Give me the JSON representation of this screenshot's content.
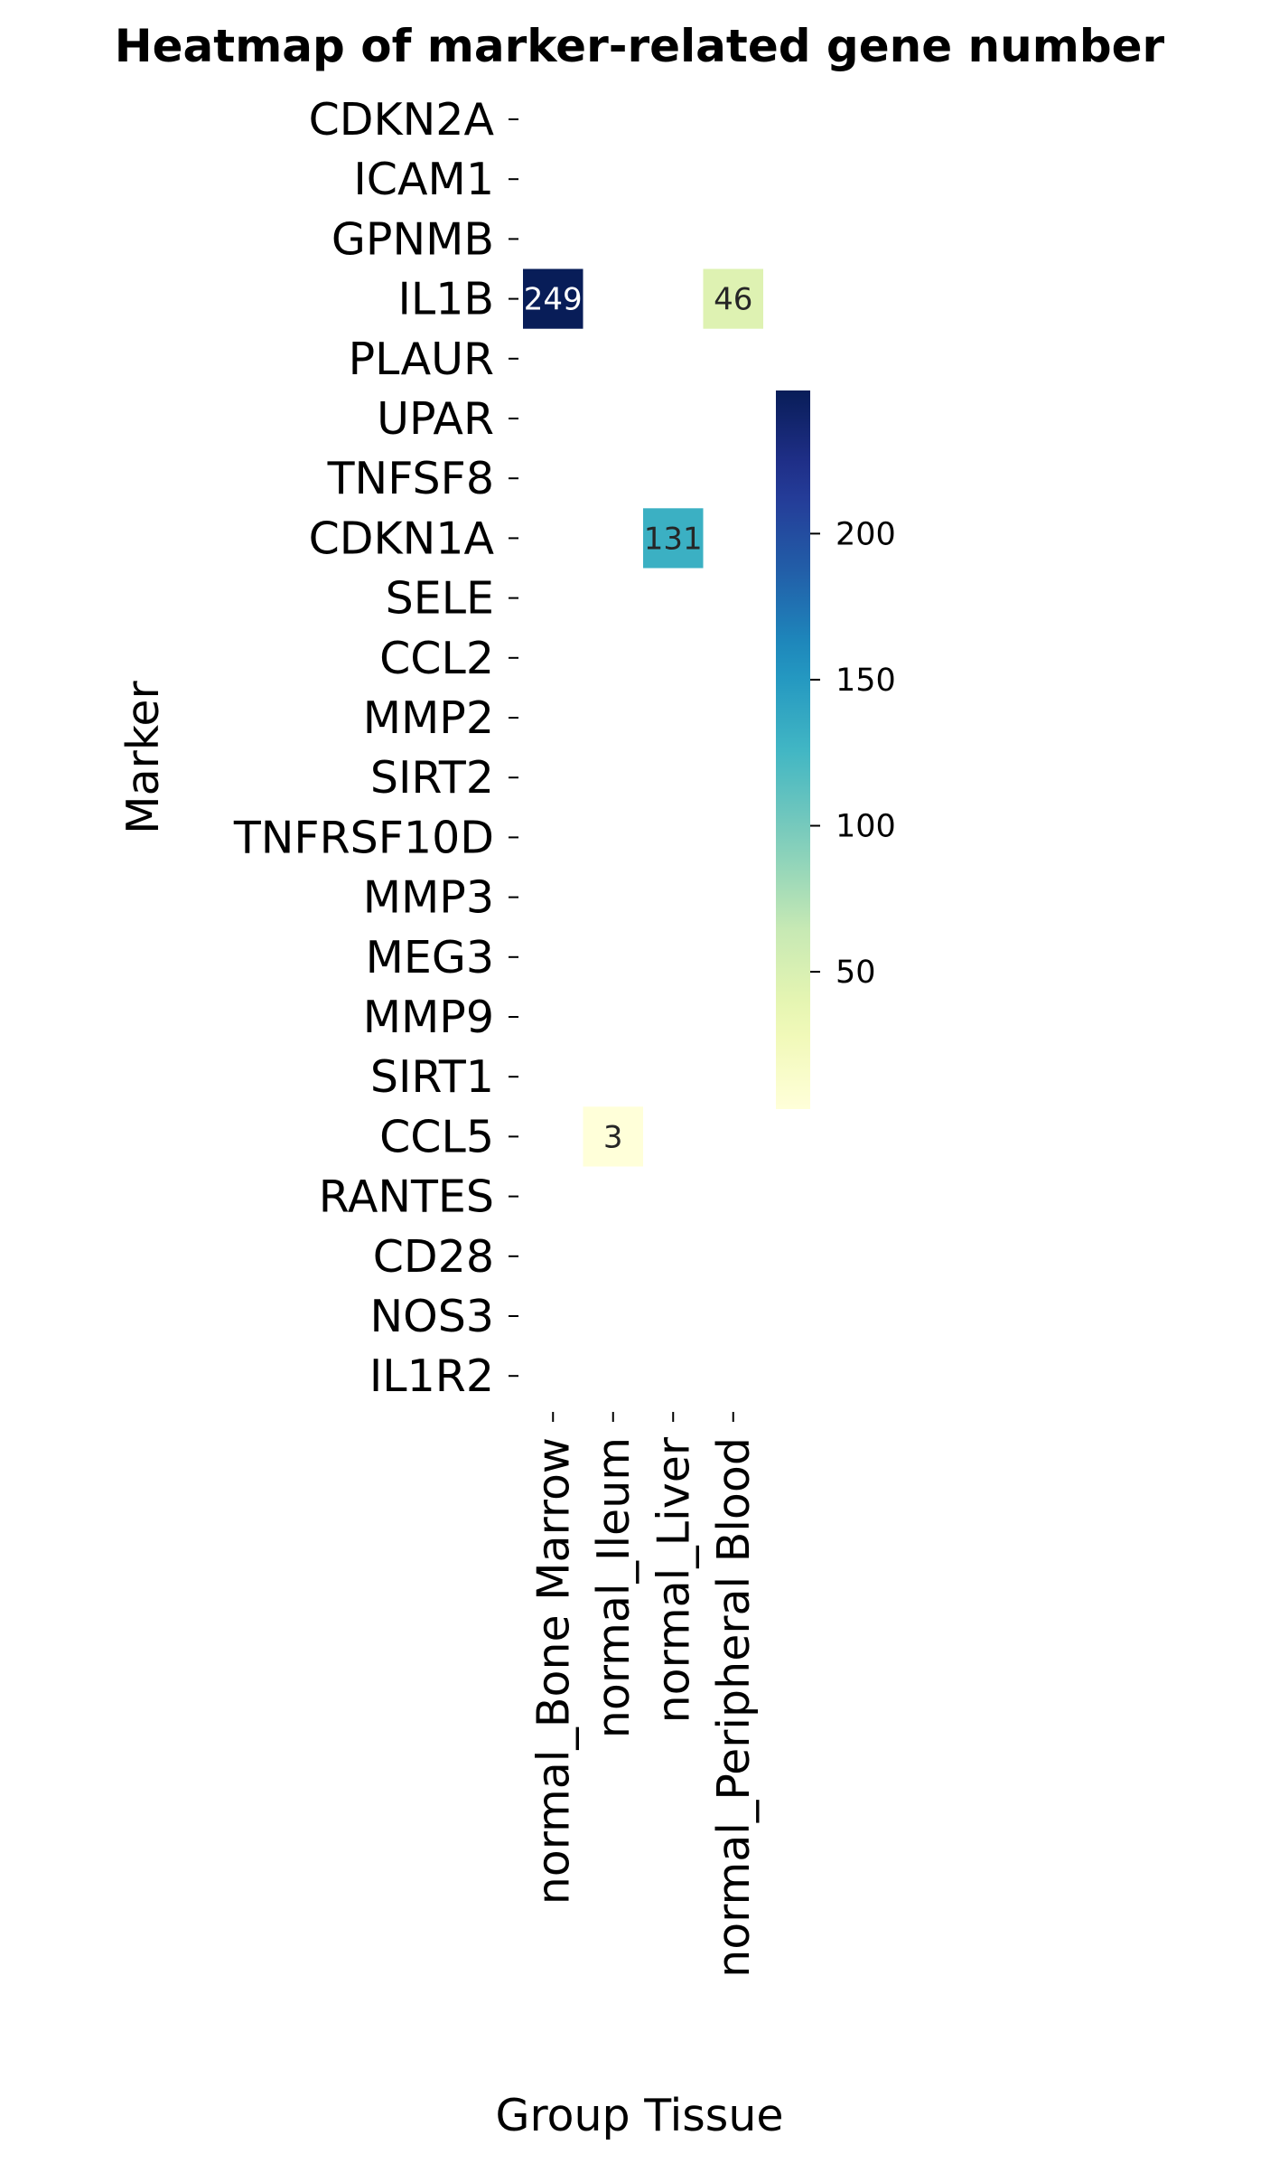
{
  "chart_data": {
    "type": "heatmap",
    "title": "Heatmap of marker-related gene number",
    "xlabel": "Group Tissue",
    "ylabel": "Marker",
    "columns": [
      "normal_Bone Marrow",
      "normal_Ileum",
      "normal_Liver",
      "normal_Peripheral Blood"
    ],
    "rows": [
      "CDKN2A",
      "ICAM1",
      "GPNMB",
      "IL1B",
      "PLAUR",
      "UPAR",
      "TNFSF8",
      "CDKN1A",
      "SELE",
      "CCL2",
      "MMP2",
      "SIRT2",
      "TNFRSF10D",
      "MMP3",
      "MEG3",
      "MMP9",
      "SIRT1",
      "CCL5",
      "RANTES",
      "CD28",
      "NOS3",
      "IL1R2"
    ],
    "cells": [
      {
        "row": "IL1B",
        "column": "normal_Bone Marrow",
        "value": 249
      },
      {
        "row": "IL1B",
        "column": "normal_Peripheral Blood",
        "value": 46
      },
      {
        "row": "CDKN1A",
        "column": "normal_Liver",
        "value": 131
      },
      {
        "row": "CCL5",
        "column": "normal_Ileum",
        "value": 3
      }
    ],
    "colormap": "YlGnBu",
    "colorbar": {
      "min": 3,
      "max": 249,
      "ticks": [
        50,
        100,
        150,
        200
      ]
    },
    "legend": "right"
  }
}
